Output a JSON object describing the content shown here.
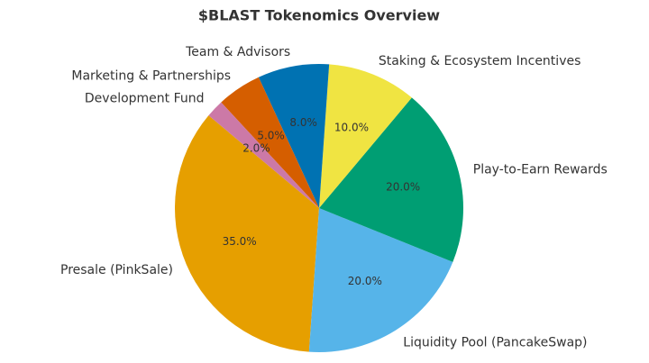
{
  "chart_data": {
    "type": "pie",
    "title": "$BLAST Tokenomics Overview",
    "categories": [
      "Presale (PinkSale)",
      "Liquidity Pool (PancakeSwap)",
      "Play-to-Earn Rewards",
      "Staking & Ecosystem Incentives",
      "Team & Advisors",
      "Marketing & Partnerships",
      "Development Fund"
    ],
    "values": [
      35,
      20,
      20,
      10,
      8,
      5,
      2
    ],
    "value_labels": [
      "35.0%",
      "20.0%",
      "20.0%",
      "10.0%",
      "8.0%",
      "5.0%",
      "2.0%"
    ],
    "colors": [
      "#E69F00",
      "#56B4E9",
      "#009E73",
      "#F0E442",
      "#0072B2",
      "#D55E00",
      "#CC79A7"
    ],
    "start_angle": 140
  }
}
